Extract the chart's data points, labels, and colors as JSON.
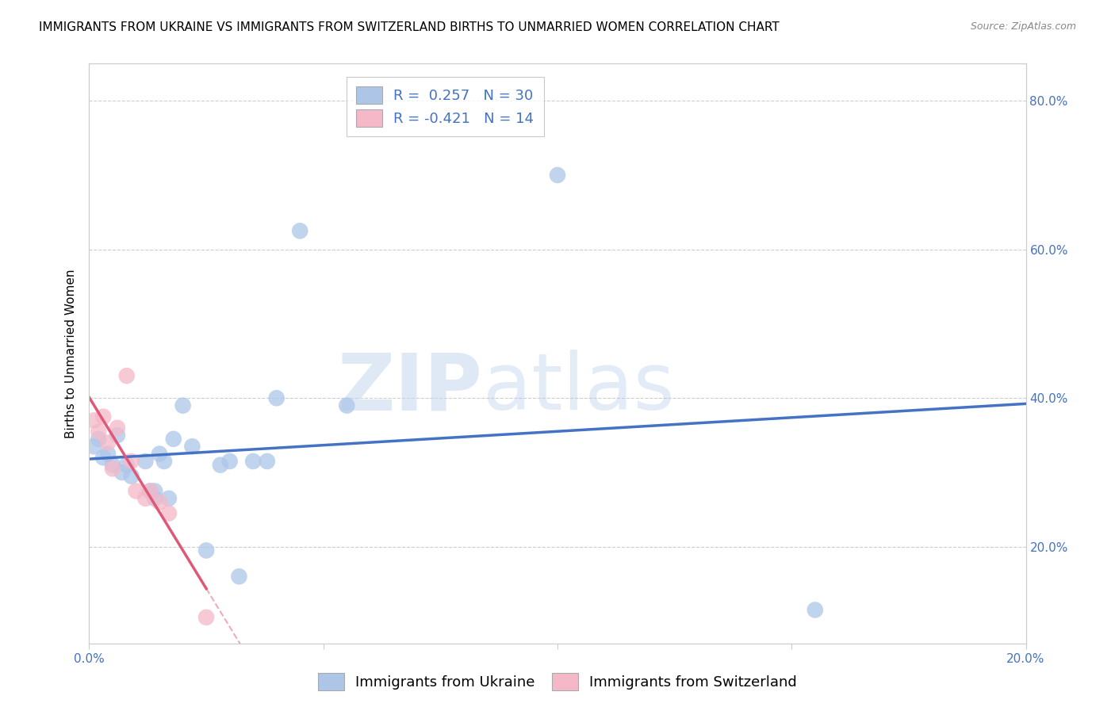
{
  "title": "IMMIGRANTS FROM UKRAINE VS IMMIGRANTS FROM SWITZERLAND BIRTHS TO UNMARRIED WOMEN CORRELATION CHART",
  "source": "Source: ZipAtlas.com",
  "ylabel": "Births to Unmarried Women",
  "watermark_zip": "ZIP",
  "watermark_atlas": "atlas",
  "legend_ukraine": "Immigrants from Ukraine",
  "legend_switzerland": "Immigrants from Switzerland",
  "ukraine_R": "0.257",
  "ukraine_N": "30",
  "switzerland_R": "-0.421",
  "switzerland_N": "14",
  "ukraine_color": "#adc6e8",
  "ukraine_line_color": "#4472c4",
  "switzerland_color": "#f4b8c8",
  "switzerland_line_color": "#e05878",
  "ukraine_x": [
    0.001,
    0.002,
    0.003,
    0.004,
    0.005,
    0.006,
    0.007,
    0.008,
    0.009,
    0.012,
    0.013,
    0.014,
    0.014,
    0.015,
    0.016,
    0.017,
    0.018,
    0.02,
    0.022,
    0.025,
    0.028,
    0.03,
    0.032,
    0.035,
    0.038,
    0.04,
    0.045,
    0.055,
    0.1,
    0.155
  ],
  "ukraine_y": [
    0.335,
    0.345,
    0.32,
    0.325,
    0.31,
    0.35,
    0.3,
    0.31,
    0.295,
    0.315,
    0.275,
    0.275,
    0.265,
    0.325,
    0.315,
    0.265,
    0.345,
    0.39,
    0.335,
    0.195,
    0.31,
    0.315,
    0.16,
    0.315,
    0.315,
    0.4,
    0.625,
    0.39,
    0.7,
    0.115
  ],
  "switzerland_x": [
    0.001,
    0.002,
    0.003,
    0.004,
    0.005,
    0.006,
    0.008,
    0.009,
    0.01,
    0.012,
    0.013,
    0.015,
    0.017,
    0.025
  ],
  "switzerland_y": [
    0.37,
    0.355,
    0.375,
    0.34,
    0.305,
    0.36,
    0.43,
    0.315,
    0.275,
    0.265,
    0.275,
    0.26,
    0.245,
    0.105
  ],
  "xlim": [
    0.0,
    0.2
  ],
  "ylim": [
    0.07,
    0.85
  ],
  "yticks": [
    0.2,
    0.4,
    0.6,
    0.8
  ],
  "ytick_labels": [
    "20.0%",
    "40.0%",
    "60.0%",
    "80.0%"
  ],
  "xticks": [
    0.0,
    0.05,
    0.1,
    0.15,
    0.2
  ],
  "xtick_labels": [
    "0.0%",
    "",
    "",
    "",
    "20.0%"
  ],
  "grid_color": "#cccccc",
  "background_color": "#ffffff",
  "title_fontsize": 11,
  "axis_label_fontsize": 11,
  "tick_fontsize": 11,
  "legend_fontsize": 13,
  "point_size": 220
}
